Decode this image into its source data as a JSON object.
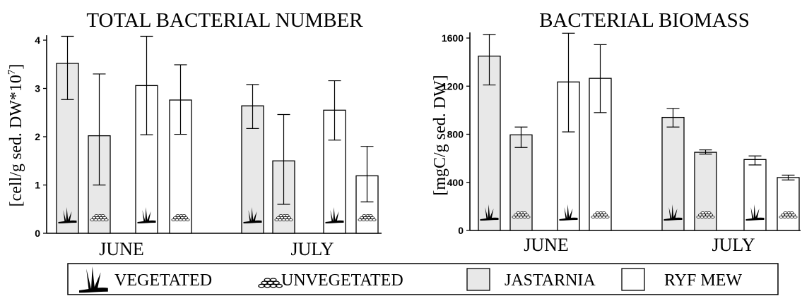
{
  "colors": {
    "jastarnia_fill": "#e8e8e8",
    "ryf_fill": "#ffffff",
    "stroke": "#000000"
  },
  "legend": {
    "vegetated": "VEGETATED",
    "unvegetated": "UNVEGETATED",
    "jastarnia": "JASTARNIA",
    "ryf_mew": "RYF MEW"
  },
  "chart_data": [
    {
      "type": "bar",
      "title": "TOTAL BACTERIAL NUMBER",
      "ylabel": "[cell/g sed. DW*10^7]",
      "ylim": [
        0,
        4
      ],
      "yticks": [
        "0",
        "1",
        "2",
        "3",
        "4"
      ],
      "categories": [
        "JUNE",
        "JULY"
      ],
      "bars": [
        {
          "group": "JUNE",
          "site": "JASTARNIA",
          "sediment": "VEGETATED",
          "value": 3.52,
          "err_low": 2.77,
          "err_high": 4.08
        },
        {
          "group": "JUNE",
          "site": "JASTARNIA",
          "sediment": "UNVEGETATED",
          "value": 2.02,
          "err_low": 1.0,
          "err_high": 3.3
        },
        {
          "group": "JUNE",
          "site": "RYF MEW",
          "sediment": "VEGETATED",
          "value": 3.06,
          "err_low": 2.04,
          "err_high": 4.08
        },
        {
          "group": "JUNE",
          "site": "RYF MEW",
          "sediment": "UNVEGETATED",
          "value": 2.76,
          "err_low": 2.05,
          "err_high": 3.49
        },
        {
          "group": "JULY",
          "site": "JASTARNIA",
          "sediment": "VEGETATED",
          "value": 2.64,
          "err_low": 2.17,
          "err_high": 3.08
        },
        {
          "group": "JULY",
          "site": "JASTARNIA",
          "sediment": "UNVEGETATED",
          "value": 1.5,
          "err_low": 0.6,
          "err_high": 2.46
        },
        {
          "group": "JULY",
          "site": "RYF MEW",
          "sediment": "VEGETATED",
          "value": 2.55,
          "err_low": 1.93,
          "err_high": 3.16
        },
        {
          "group": "JULY",
          "site": "RYF MEW",
          "sediment": "UNVEGETATED",
          "value": 1.19,
          "err_low": 0.65,
          "err_high": 1.8
        }
      ]
    },
    {
      "type": "bar",
      "title": "BACTERIAL BIOMASS",
      "ylabel": "[mgC/g sed. DW]",
      "ylim": [
        0,
        1600
      ],
      "yticks": [
        "0",
        "400",
        "800",
        "1200",
        "1600"
      ],
      "categories": [
        "JUNE",
        "JULY"
      ],
      "bars": [
        {
          "group": "JUNE",
          "site": "JASTARNIA",
          "sediment": "VEGETATED",
          "value": 1450,
          "err_low": 1210,
          "err_high": 1630
        },
        {
          "group": "JUNE",
          "site": "JASTARNIA",
          "sediment": "UNVEGETATED",
          "value": 795,
          "err_low": 690,
          "err_high": 860
        },
        {
          "group": "JUNE",
          "site": "RYF MEW",
          "sediment": "VEGETATED",
          "value": 1235,
          "err_low": 820,
          "err_high": 1640
        },
        {
          "group": "JUNE",
          "site": "RYF MEW",
          "sediment": "UNVEGETATED",
          "value": 1265,
          "err_low": 980,
          "err_high": 1545
        },
        {
          "group": "JULY",
          "site": "JASTARNIA",
          "sediment": "VEGETATED",
          "value": 940,
          "err_low": 860,
          "err_high": 1015
        },
        {
          "group": "JULY",
          "site": "JASTARNIA",
          "sediment": "UNVEGETATED",
          "value": 650,
          "err_low": 635,
          "err_high": 670
        },
        {
          "group": "JULY",
          "site": "RYF MEW",
          "sediment": "VEGETATED",
          "value": 590,
          "err_low": 545,
          "err_high": 620
        },
        {
          "group": "JULY",
          "site": "RYF MEW",
          "sediment": "UNVEGETATED",
          "value": 440,
          "err_low": 420,
          "err_high": 460
        }
      ]
    }
  ]
}
